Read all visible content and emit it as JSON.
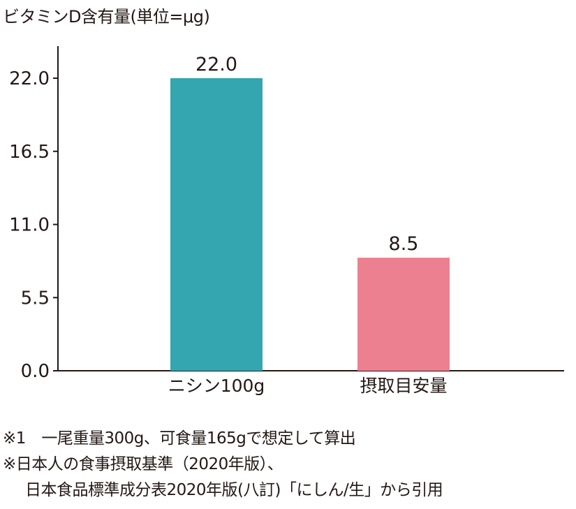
{
  "chart_data": {
    "type": "bar",
    "title": "ビタミンD含有量(単位=μg)",
    "categories": [
      "ニシン100g",
      "摂取目安量"
    ],
    "values": [
      22.0,
      8.5
    ],
    "value_labels": [
      "22.0",
      "8.5"
    ],
    "bar_colors": [
      "#33a6b0",
      "#ec8090"
    ],
    "yticks": [
      0.0,
      5.5,
      11.0,
      16.5,
      22.0
    ],
    "ytick_labels": [
      "0.0",
      "5.5",
      "11.0",
      "16.5",
      "22.0"
    ],
    "ylim": [
      0,
      24.5
    ],
    "grid": false,
    "xlabel": "",
    "ylabel": ""
  },
  "notes": [
    "※1　一尾重量300g、可食量165gで想定して算出",
    "※日本人の食事摂取基準（2020年版）、",
    "日本食品標準成分表2020年版(八訂)「にしん/生」から引用"
  ]
}
